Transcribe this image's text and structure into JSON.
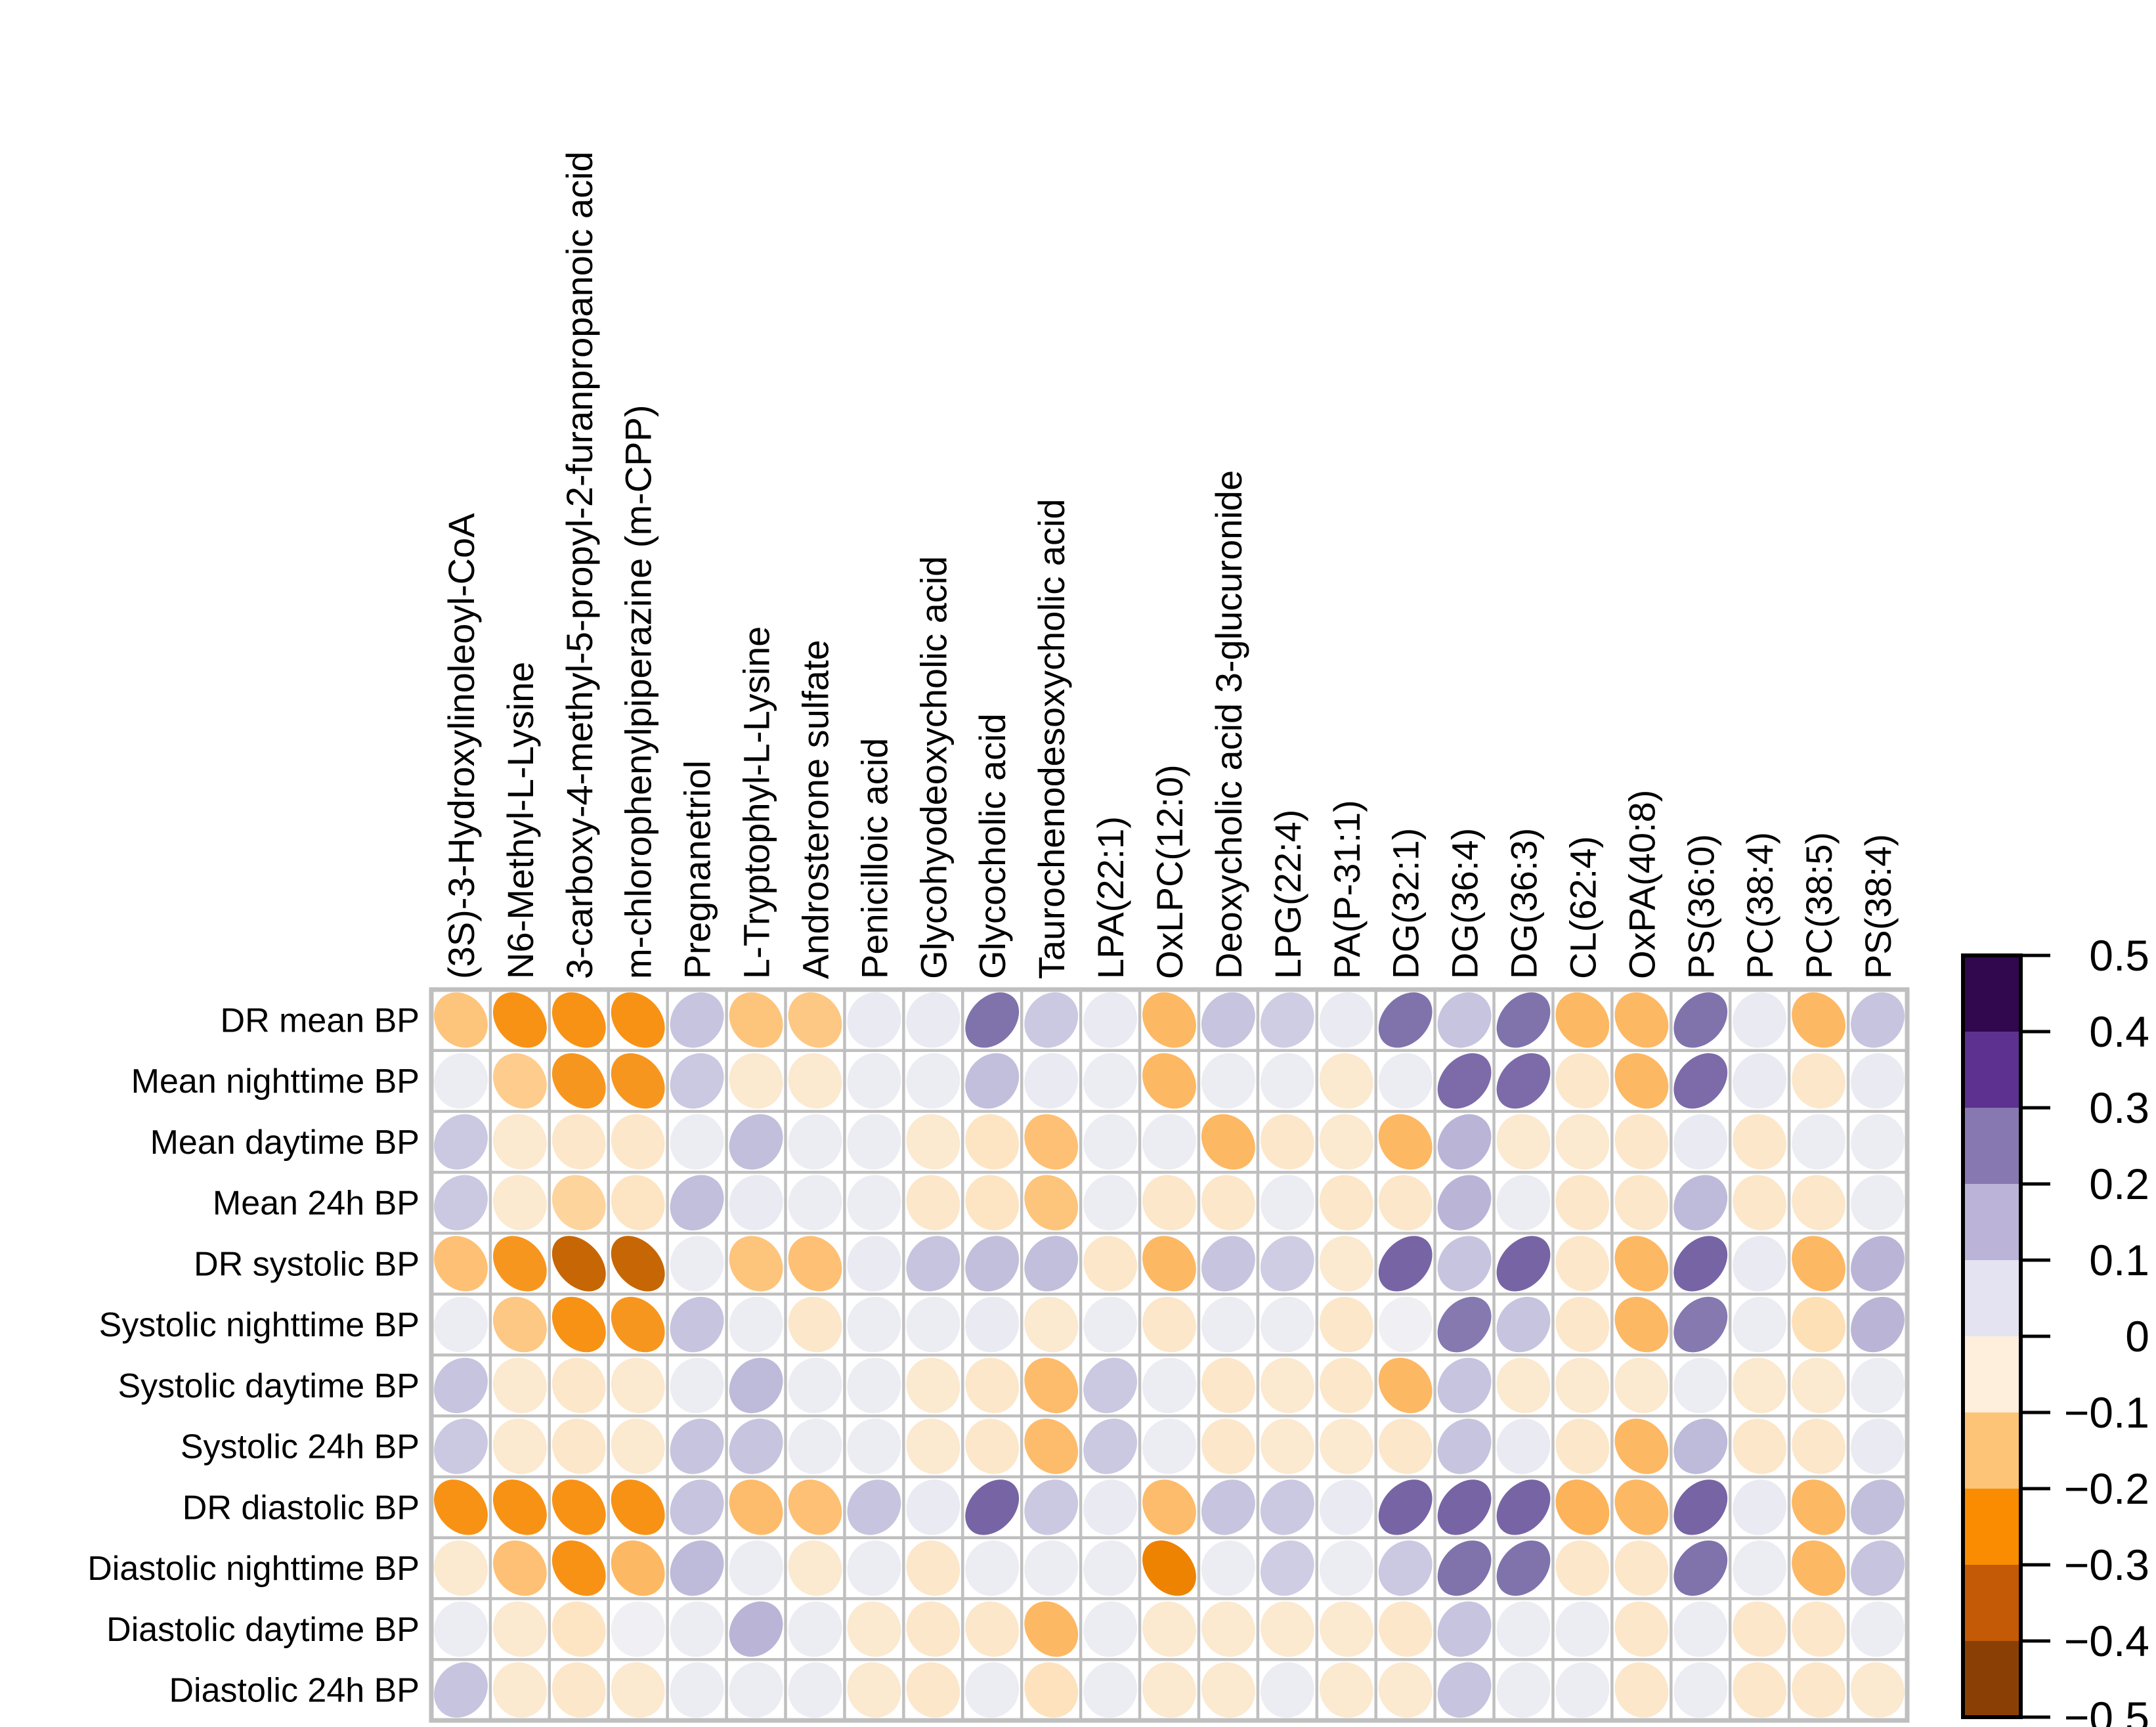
{
  "figure": {
    "background": "#ffffff",
    "grid_line_color": "#bfbfbf",
    "cell_background": "#ffffff"
  },
  "chart_data": {
    "type": "heatmap",
    "subtype": "correlation-ellipse-matrix",
    "title": "",
    "xlabel": "",
    "ylabel": "",
    "value_range": [
      -0.5,
      0.5
    ],
    "grid": true,
    "legend_position": "right",
    "columns": [
      "(3S)-3-Hydroxylinoleoyl-CoA",
      "N6-Methyl-L-Lysine",
      "3-carboxy-4-methyl-5-propyl-2-furanpropanoic acid",
      "m-chlorophenylpiperazine (m-CPP)",
      "Pregnanetriol",
      "L-Tryptophyl-L-Lysine",
      "Androsterone sulfate",
      "Penicilloic acid",
      "Glycohyodeoxycholic acid",
      "Glycocholic acid",
      "Taurochenodesoxycholic acid",
      "LPA(22:1)",
      "OxLPC(12:0)",
      "Deoxycholic acid 3-glucuronide",
      "LPG(22:4)",
      "PA(P-31:1)",
      "DG(32:1)",
      "DG(36:4)",
      "DG(36:3)",
      "CL(62:4)",
      "OxPA(40:8)",
      "PS(36:0)",
      "PC(38:4)",
      "PC(38:5)",
      "PS(38:4)"
    ],
    "rows": [
      "DR mean BP",
      "Mean nighttime BP",
      "Mean daytime BP",
      "Mean 24h BP",
      "DR systolic BP",
      "Systolic nighttime BP",
      "Systolic daytime BP",
      "Systolic 24h BP",
      "DR diastolic BP",
      "Diastolic nighttime BP",
      "Diastolic daytime BP",
      "Diastolic 24h BP"
    ],
    "values": [
      [
        -0.17,
        -0.28,
        -0.28,
        -0.28,
        0.15,
        -0.17,
        -0.16,
        0.05,
        0.05,
        0.3,
        0.14,
        0.05,
        -0.2,
        0.15,
        0.13,
        0.05,
        0.3,
        0.15,
        0.3,
        -0.2,
        -0.2,
        0.3,
        0.05,
        -0.2,
        0.15
      ],
      [
        0.04,
        -0.15,
        -0.27,
        -0.27,
        0.14,
        -0.06,
        -0.06,
        0.04,
        0.04,
        0.16,
        0.05,
        0.04,
        -0.2,
        0.04,
        0.04,
        -0.06,
        0.04,
        0.31,
        0.31,
        -0.07,
        -0.2,
        0.31,
        0.05,
        -0.07,
        0.05
      ],
      [
        0.14,
        -0.06,
        -0.07,
        -0.07,
        0.04,
        0.16,
        0.04,
        0.04,
        -0.06,
        -0.08,
        -0.18,
        0.04,
        0.04,
        -0.2,
        -0.07,
        -0.06,
        -0.2,
        0.18,
        -0.06,
        -0.06,
        -0.07,
        0.05,
        -0.07,
        0.04,
        0.04
      ],
      [
        0.14,
        -0.06,
        -0.13,
        -0.08,
        0.16,
        0.05,
        0.04,
        0.04,
        -0.07,
        -0.08,
        -0.17,
        0.04,
        -0.07,
        -0.07,
        0.04,
        -0.07,
        -0.07,
        0.18,
        0.04,
        -0.07,
        -0.07,
        0.17,
        -0.07,
        -0.07,
        0.04
      ],
      [
        -0.18,
        -0.27,
        -0.37,
        -0.37,
        0.04,
        -0.17,
        -0.18,
        0.05,
        0.15,
        0.16,
        0.16,
        -0.07,
        -0.2,
        0.15,
        0.13,
        -0.06,
        0.32,
        0.15,
        0.32,
        -0.07,
        -0.2,
        0.32,
        0.05,
        -0.2,
        0.18
      ],
      [
        0.04,
        -0.16,
        -0.28,
        -0.27,
        0.15,
        0.04,
        -0.07,
        0.04,
        0.04,
        0.05,
        -0.06,
        0.04,
        -0.07,
        0.04,
        0.04,
        -0.07,
        0.03,
        0.29,
        0.15,
        -0.07,
        -0.2,
        0.29,
        0.04,
        -0.1,
        0.18
      ],
      [
        0.15,
        -0.06,
        -0.07,
        -0.06,
        0.04,
        0.17,
        0.04,
        0.04,
        -0.06,
        -0.07,
        -0.19,
        0.14,
        0.04,
        -0.07,
        -0.06,
        -0.07,
        -0.2,
        0.15,
        -0.06,
        -0.06,
        -0.06,
        0.04,
        -0.06,
        -0.06,
        0.04
      ],
      [
        0.14,
        -0.06,
        -0.07,
        -0.06,
        0.15,
        0.15,
        0.04,
        0.04,
        -0.06,
        -0.07,
        -0.19,
        0.14,
        0.04,
        -0.07,
        -0.06,
        -0.06,
        -0.07,
        0.15,
        0.05,
        -0.07,
        -0.2,
        0.17,
        -0.07,
        -0.07,
        0.05
      ],
      [
        -0.28,
        -0.28,
        -0.28,
        -0.28,
        0.15,
        -0.19,
        -0.18,
        0.15,
        0.05,
        0.32,
        0.14,
        0.05,
        -0.19,
        0.15,
        0.14,
        0.05,
        0.32,
        0.32,
        0.32,
        -0.21,
        -0.2,
        0.32,
        0.05,
        -0.2,
        0.16
      ],
      [
        -0.06,
        -0.18,
        -0.28,
        -0.2,
        0.17,
        0.04,
        -0.06,
        0.04,
        -0.07,
        0.04,
        0.04,
        0.04,
        -0.31,
        0.04,
        0.13,
        0.04,
        0.14,
        0.3,
        0.3,
        -0.07,
        -0.07,
        0.3,
        0.04,
        -0.2,
        0.15
      ],
      [
        0.04,
        -0.06,
        -0.08,
        0.03,
        0.04,
        0.18,
        0.04,
        -0.06,
        -0.07,
        -0.07,
        -0.2,
        0.04,
        -0.06,
        -0.06,
        -0.06,
        -0.06,
        -0.07,
        0.15,
        0.04,
        0.04,
        -0.07,
        0.04,
        -0.07,
        -0.07,
        0.04
      ],
      [
        0.15,
        -0.06,
        -0.07,
        -0.06,
        0.04,
        0.04,
        0.04,
        -0.06,
        -0.07,
        0.04,
        -0.09,
        0.04,
        -0.06,
        -0.06,
        0.04,
        -0.06,
        -0.06,
        0.15,
        0.04,
        0.04,
        -0.07,
        0.04,
        -0.07,
        -0.07,
        -0.06
      ]
    ],
    "legend": {
      "tick_labels": [
        "0.5",
        "0.4",
        "0.3",
        "0.2",
        "0.1",
        "0",
        "−0.1",
        "−0.2",
        "−0.3",
        "−0.4",
        "−0.5"
      ],
      "band_colors_top_to_bottom": [
        "#31074E",
        "#5C3190",
        "#8878B1",
        "#BBB3D8",
        "#E4E3F1",
        "#FDEFDC",
        "#FDC478",
        "#F98C00",
        "#C45A06",
        "#8A4004"
      ]
    },
    "colormap_anchors": {
      "values": [
        -0.5,
        -0.4,
        -0.3,
        -0.2,
        -0.1,
        0,
        0.1,
        0.2,
        0.3,
        0.4,
        0.5
      ],
      "colors": [
        "#7F3B08",
        "#B35806",
        "#F58802",
        "#FDB863",
        "#FEE0B6",
        "#F7F7F7",
        "#DBDCEC",
        "#B2ABD2",
        "#8073AC",
        "#542788",
        "#2D004B"
      ]
    }
  }
}
